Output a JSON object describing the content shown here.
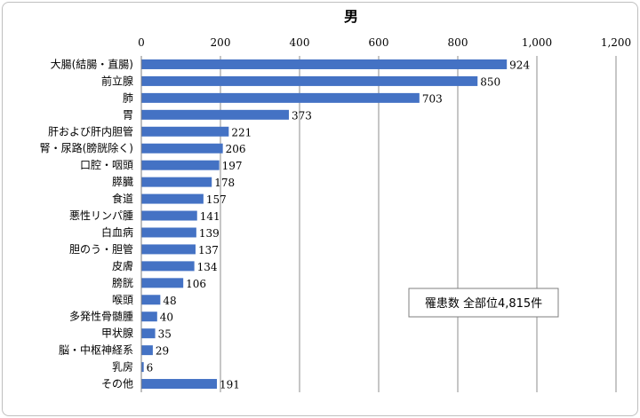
{
  "chart_data": {
    "type": "bar",
    "orientation": "horizontal",
    "title": "男",
    "categories": [
      "大腸(結腸・直腸)",
      "前立腺",
      "肺",
      "胃",
      "肝および肝内胆管",
      "腎・尿路(膀胱除く)",
      "口腔・咽頭",
      "膵臓",
      "食道",
      "悪性リンパ腫",
      "白血病",
      "胆のう・胆管",
      "皮膚",
      "膀胱",
      "喉頭",
      "多発性骨髄腫",
      "甲状腺",
      "脳・中枢神経系",
      "乳房",
      "その他"
    ],
    "values": [
      924,
      850,
      703,
      373,
      221,
      206,
      197,
      178,
      157,
      141,
      139,
      137,
      134,
      106,
      48,
      40,
      35,
      29,
      6,
      191
    ],
    "xticks": [
      "0",
      "200",
      "400",
      "600",
      "800",
      "1,000",
      "1,200"
    ],
    "xlim": [
      0,
      1200
    ],
    "grid": true,
    "bar_color": "#4472C4",
    "annotation": "罹患数  全部位4,815件"
  }
}
